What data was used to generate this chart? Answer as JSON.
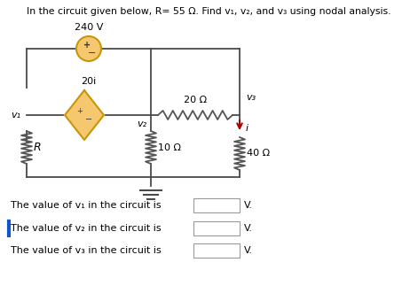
{
  "title": "In the circuit given below, R= 55 Ω. Find v₁, v₂, and v₃ using nodal analysis.",
  "bg_color": "#ffffff",
  "text_color": "#000000",
  "wire_color": "#4a4a4a",
  "source_circle_color": "#f5c870",
  "source_circle_edge": "#c8960a",
  "diamond_color": "#f5c870",
  "diamond_edge": "#c8960a",
  "arrow_color": "#aa0000",
  "answer_box_color": "#ffffff",
  "answer_box_edge": "#999999",
  "label_v1": "v₁",
  "label_v2": "v₂",
  "label_v3": "v₃",
  "label_20i": "20i",
  "label_R": "R",
  "label_240V": "240 V",
  "label_20ohm": "20 Ω",
  "label_10ohm": "10 Ω",
  "label_40ohm": "40 Ω",
  "label_i": "i",
  "text1": "The value of v₁ in the circuit is",
  "text2": "The value of v₂ in the circuit is",
  "text3": "The value of v₃ in the circuit is",
  "suffix": "V.",
  "fig_width": 4.71,
  "fig_height": 3.4
}
